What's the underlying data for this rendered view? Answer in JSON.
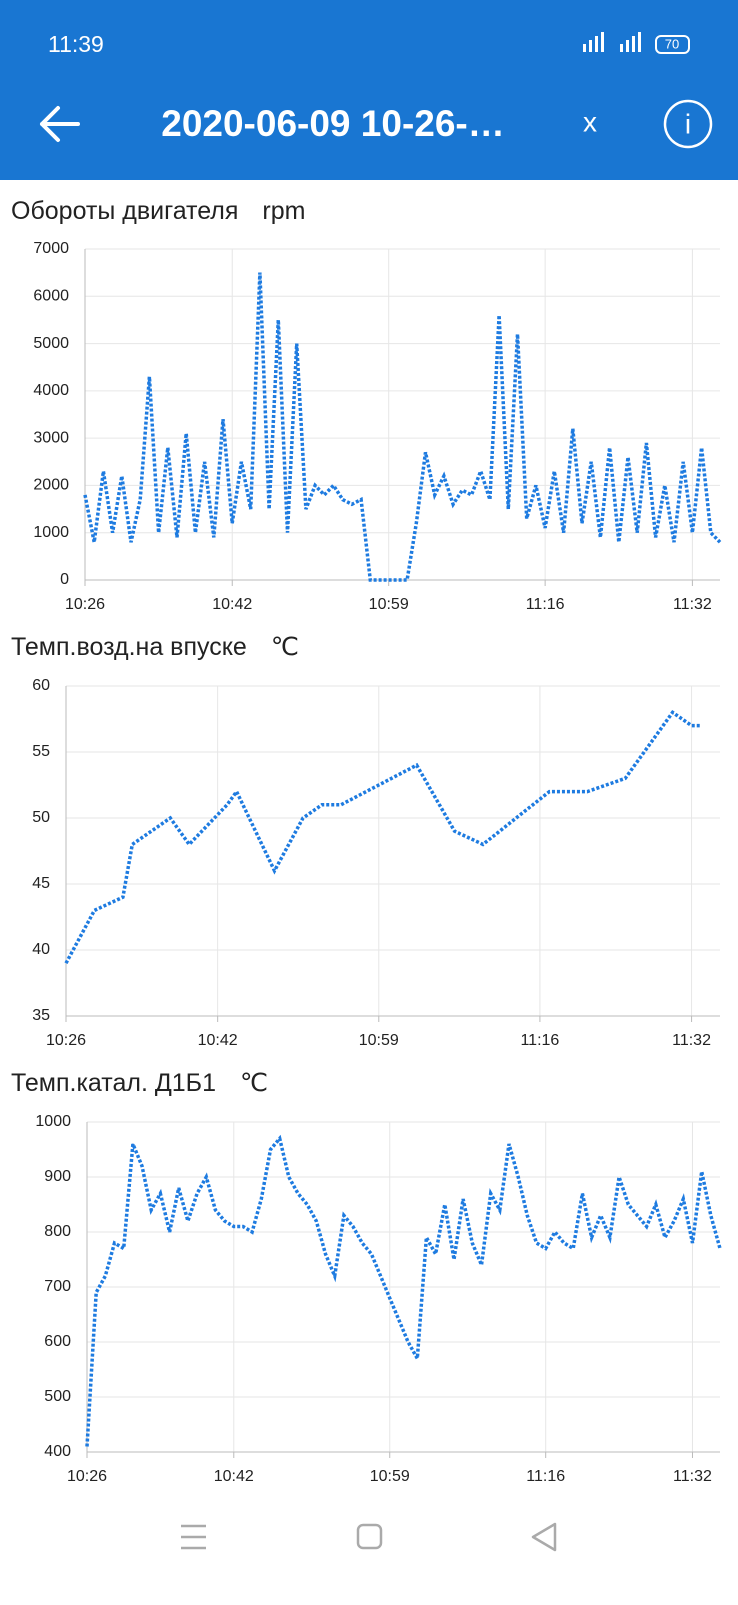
{
  "status_bar": {
    "time": "11:39",
    "battery": "70"
  },
  "app_bar": {
    "title": "2020-06-09 10-26-…",
    "close": "x"
  },
  "chart_data": [
    {
      "type": "line",
      "title": "Обороты двигателя",
      "y_unit": "rpm",
      "color": "#1e7be0",
      "grid": true,
      "x": [
        "10:26",
        "10:27",
        "10:28",
        "10:29",
        "10:30",
        "10:31",
        "10:32",
        "10:33",
        "10:34",
        "10:35",
        "10:36",
        "10:37",
        "10:38",
        "10:39",
        "10:40",
        "10:41",
        "10:42",
        "10:43",
        "10:44",
        "10:45",
        "10:46",
        "10:47",
        "10:48",
        "10:49",
        "10:50",
        "10:51",
        "10:52",
        "10:53",
        "10:54",
        "10:55",
        "10:56",
        "10:57",
        "10:58",
        "10:59",
        "11:00",
        "11:01",
        "11:02",
        "11:03",
        "11:04",
        "11:05",
        "11:06",
        "11:07",
        "11:08",
        "11:09",
        "11:10",
        "11:11",
        "11:12",
        "11:13",
        "11:14",
        "11:15",
        "11:16",
        "11:17",
        "11:18",
        "11:19",
        "11:20",
        "11:21",
        "11:22",
        "11:23",
        "11:24",
        "11:25",
        "11:26",
        "11:27",
        "11:28",
        "11:29",
        "11:30",
        "11:31",
        "11:32",
        "11:33",
        "11:34",
        "11:35"
      ],
      "values": [
        1800,
        800,
        2300,
        1000,
        2200,
        800,
        1700,
        4300,
        1000,
        2800,
        900,
        3100,
        1000,
        2500,
        900,
        3400,
        1200,
        2500,
        1500,
        6500,
        1500,
        5500,
        1000,
        5000,
        1500,
        2000,
        1800,
        2000,
        1700,
        1600,
        1700,
        0,
        0,
        0,
        0,
        0,
        1200,
        2700,
        1800,
        2200,
        1600,
        1900,
        1800,
        2300,
        1700,
        5600,
        1500,
        5200,
        1300,
        2000,
        1100,
        2300,
        1000,
        3200,
        1200,
        2500,
        900,
        2800,
        800,
        2600,
        1000,
        2900,
        900,
        2000,
        800,
        2500,
        1000,
        2800,
        1000,
        800
      ],
      "xlim": [
        "10:26",
        "11:35"
      ],
      "xticks": [
        "10:26",
        "10:42",
        "10:59",
        "11:16",
        "11:32"
      ],
      "ylim": [
        0,
        7000
      ],
      "yticks": [
        0,
        1000,
        2000,
        3000,
        4000,
        5000,
        6000,
        7000
      ]
    },
    {
      "type": "line",
      "title": "Темп.возд.на впуске",
      "y_unit": "℃",
      "color": "#1e7be0",
      "grid": true,
      "x": [
        "10:26",
        "10:29",
        "10:32",
        "10:33",
        "10:37",
        "10:39",
        "10:43",
        "10:44",
        "10:48",
        "10:51",
        "10:53",
        "10:55",
        "11:03",
        "11:07",
        "11:10",
        "11:17",
        "11:21",
        "11:25",
        "11:30",
        "11:32",
        "11:33"
      ],
      "values": [
        39,
        43,
        44,
        48,
        50,
        48,
        51,
        52,
        46,
        50,
        51,
        51,
        54,
        49,
        48,
        52,
        52,
        53,
        58,
        57,
        57
      ],
      "xlim": [
        "10:26",
        "11:35"
      ],
      "xticks": [
        "10:26",
        "10:42",
        "10:59",
        "11:16",
        "11:32"
      ],
      "ylim": [
        35,
        60
      ],
      "yticks": [
        35,
        40,
        45,
        50,
        55,
        60
      ]
    },
    {
      "type": "line",
      "title": "Темп.катал. Д1Б1",
      "y_unit": "℃",
      "color": "#1e7be0",
      "grid": true,
      "x": [
        "10:26",
        "10:27",
        "10:28",
        "10:29",
        "10:30",
        "10:31",
        "10:32",
        "10:33",
        "10:34",
        "10:35",
        "10:36",
        "10:37",
        "10:38",
        "10:39",
        "10:40",
        "10:41",
        "10:42",
        "10:43",
        "10:44",
        "10:45",
        "10:46",
        "10:47",
        "10:48",
        "10:49",
        "10:50",
        "10:51",
        "10:52",
        "10:53",
        "10:54",
        "10:55",
        "10:56",
        "10:57",
        "10:58",
        "10:59",
        "11:00",
        "11:01",
        "11:02",
        "11:03",
        "11:04",
        "11:05",
        "11:06",
        "11:07",
        "11:08",
        "11:09",
        "11:10",
        "11:11",
        "11:12",
        "11:13",
        "11:14",
        "11:15",
        "11:16",
        "11:17",
        "11:18",
        "11:19",
        "11:20",
        "11:21",
        "11:22",
        "11:23",
        "11:24",
        "11:25",
        "11:26",
        "11:27",
        "11:28",
        "11:29",
        "11:30",
        "11:31",
        "11:32",
        "11:33",
        "11:34",
        "11:35"
      ],
      "values": [
        410,
        690,
        720,
        780,
        770,
        960,
        920,
        840,
        870,
        800,
        880,
        820,
        870,
        900,
        840,
        820,
        810,
        810,
        800,
        860,
        950,
        970,
        900,
        870,
        850,
        820,
        760,
        720,
        830,
        810,
        780,
        760,
        720,
        680,
        640,
        600,
        570,
        790,
        760,
        850,
        750,
        860,
        780,
        740,
        870,
        840,
        960,
        900,
        830,
        780,
        770,
        800,
        780,
        770,
        870,
        790,
        830,
        790,
        900,
        850,
        830,
        810,
        850,
        790,
        820,
        860,
        780,
        910,
        830,
        770
      ],
      "xlim": [
        "10:26",
        "11:35"
      ],
      "xticks": [
        "10:26",
        "10:42",
        "10:59",
        "11:16",
        "11:32"
      ],
      "ylim": [
        400,
        1000
      ],
      "yticks": [
        400,
        500,
        600,
        700,
        800,
        900,
        1000
      ]
    }
  ]
}
